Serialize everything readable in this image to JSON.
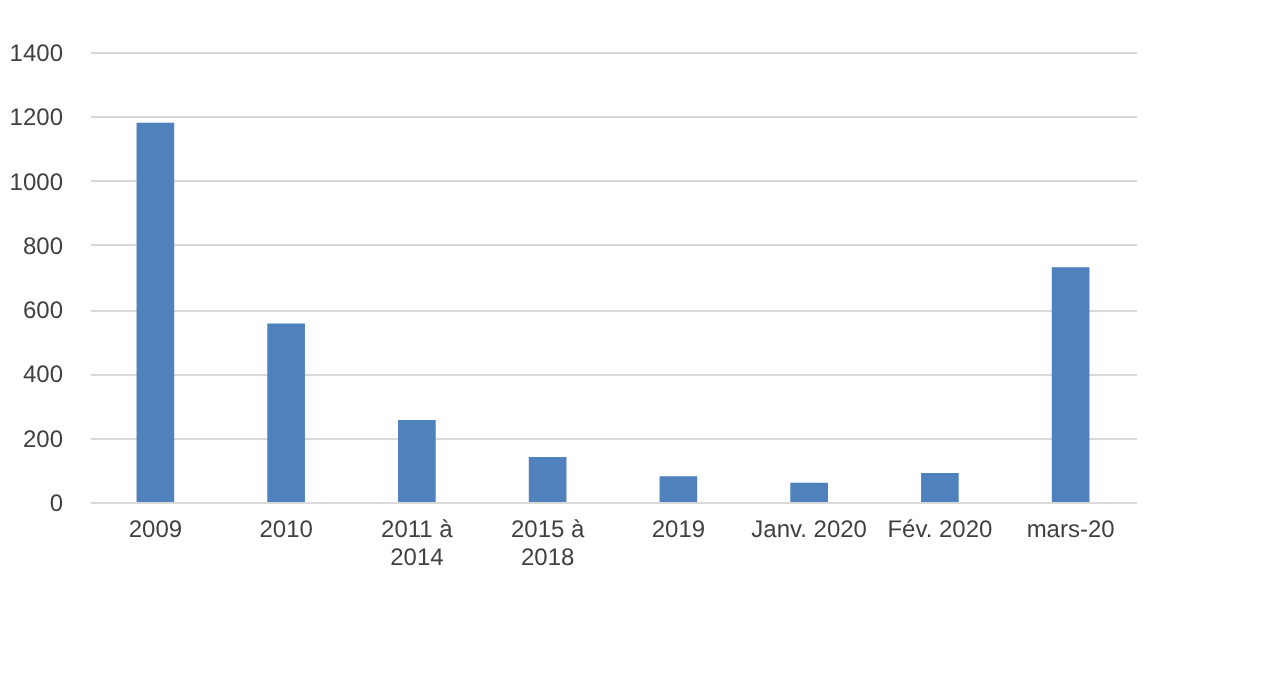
{
  "chart_data": {
    "type": "bar",
    "categories": [
      "2009",
      "2010",
      "2011 à 2014",
      "2015 à 2018",
      "2019",
      "Janv. 2020",
      "Fév. 2020",
      "mars-20"
    ],
    "values": [
      1180,
      555,
      255,
      140,
      80,
      60,
      90,
      730
    ],
    "color": "#4f81bd",
    "ylim": [
      0,
      1400
    ],
    "yticks": [
      0,
      200,
      400,
      600,
      800,
      1000,
      1200,
      1400
    ],
    "grid": "y"
  }
}
